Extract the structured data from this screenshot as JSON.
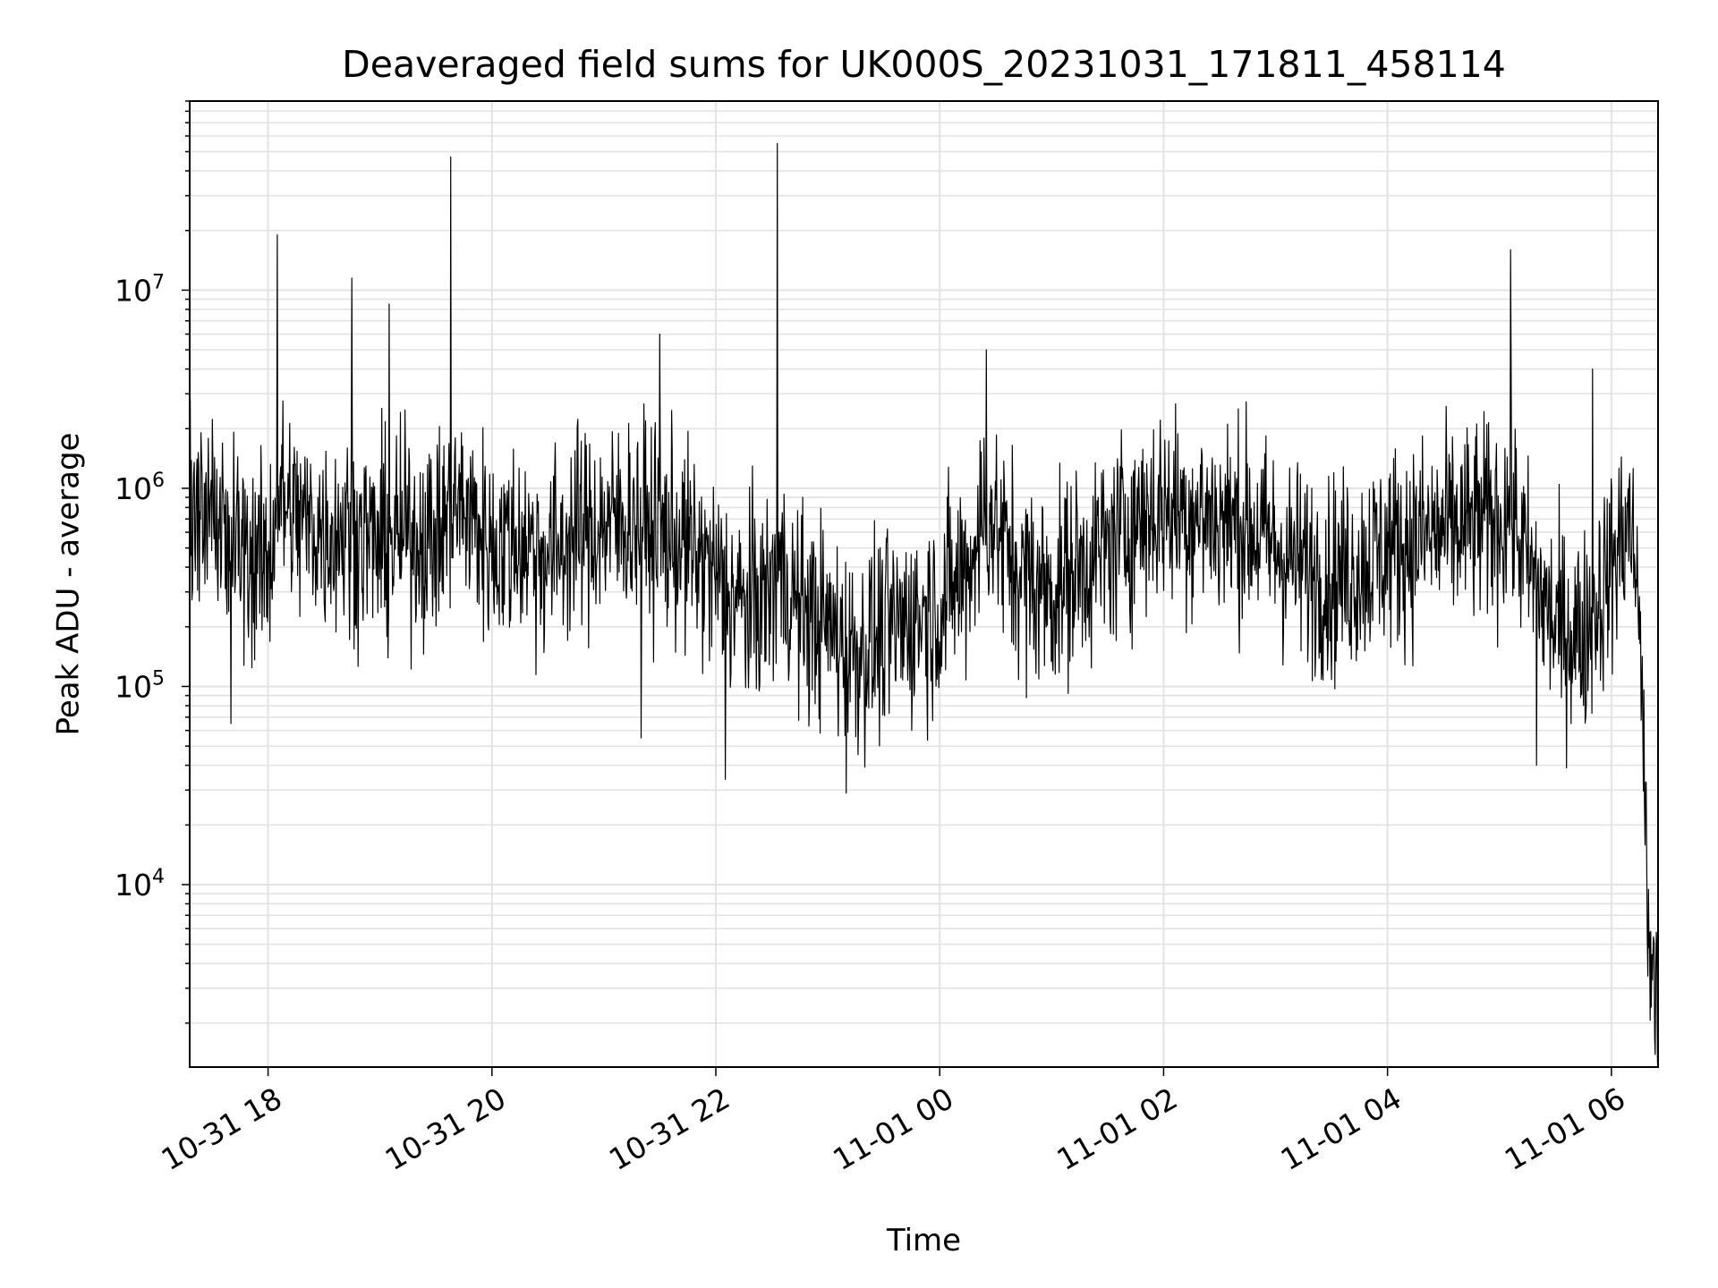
{
  "chart_data": {
    "type": "line",
    "title": "Deaveraged field sums for UK000S_20231031_171811_458114",
    "xlabel": "Time",
    "ylabel": "Peak ADU - average",
    "yscale": "log",
    "xlim": [
      "2023-10-31 17:18",
      "2023-11-01 06:25"
    ],
    "ylim": [
      1200,
      90000000
    ],
    "grid": true,
    "grid_major_x": true,
    "grid_major_minor_y": true,
    "line_color": "#000000",
    "grid_color": "#e3e3e3",
    "x_tick_labels": [
      {
        "x": "2023-10-31 18:00",
        "label": "10-31 18"
      },
      {
        "x": "2023-10-31 20:00",
        "label": "10-31 20"
      },
      {
        "x": "2023-10-31 22:00",
        "label": "10-31 22"
      },
      {
        "x": "2023-11-01 00:00",
        "label": "11-01 00"
      },
      {
        "x": "2023-11-01 02:00",
        "label": "11-01 02"
      },
      {
        "x": "2023-11-01 04:00",
        "label": "11-01 04"
      },
      {
        "x": "2023-11-01 06:00",
        "label": "11-01 06"
      }
    ],
    "y_tick_labels": [
      {
        "y": 10000,
        "base": "10",
        "exp": "4"
      },
      {
        "y": 100000,
        "base": "10",
        "exp": "5"
      },
      {
        "y": 1000000,
        "base": "10",
        "exp": "6"
      },
      {
        "y": 10000000,
        "base": "10",
        "exp": "7"
      }
    ],
    "series": [
      {
        "x": [
          "2023-10-31 17:18",
          "2023-10-31 17:30",
          "2023-10-31 17:45",
          "2023-10-31 18:00",
          "2023-10-31 18:05",
          "2023-10-31 18:15",
          "2023-10-31 18:30",
          "2023-10-31 18:45",
          "2023-10-31 19:00",
          "2023-10-31 19:15",
          "2023-10-31 19:30",
          "2023-10-31 19:38",
          "2023-10-31 19:45",
          "2023-10-31 20:00",
          "2023-10-31 20:15",
          "2023-10-31 20:30",
          "2023-10-31 20:45",
          "2023-10-31 21:00",
          "2023-10-31 21:15",
          "2023-10-31 21:30",
          "2023-10-31 21:45",
          "2023-10-31 22:00",
          "2023-10-31 22:15",
          "2023-10-31 22:30",
          "2023-10-31 22:33",
          "2023-10-31 22:45",
          "2023-10-31 23:00",
          "2023-10-31 23:15",
          "2023-10-31 23:30",
          "2023-10-31 23:45",
          "2023-11-01 00:00",
          "2023-11-01 00:15",
          "2023-11-01 00:25",
          "2023-11-01 00:35",
          "2023-11-01 00:45",
          "2023-11-01 01:00",
          "2023-11-01 01:15",
          "2023-11-01 01:30",
          "2023-11-01 01:45",
          "2023-11-01 02:00",
          "2023-11-01 02:15",
          "2023-11-01 02:30",
          "2023-11-01 02:45",
          "2023-11-01 03:00",
          "2023-11-01 03:15",
          "2023-11-01 03:30",
          "2023-11-01 03:45",
          "2023-11-01 04:00",
          "2023-11-01 04:15",
          "2023-11-01 04:30",
          "2023-11-01 04:45",
          "2023-11-01 05:00",
          "2023-11-01 05:06",
          "2023-11-01 05:15",
          "2023-11-01 05:30",
          "2023-11-01 05:45",
          "2023-11-01 06:00",
          "2023-11-01 06:10",
          "2023-11-01 06:15",
          "2023-11-01 06:20",
          "2023-11-01 06:25"
        ],
        "y": [
          700000,
          800000,
          500000,
          400000,
          900000,
          700000,
          600000,
          650000,
          500000,
          600000,
          550000,
          750000,
          800000,
          500000,
          550000,
          450000,
          600000,
          650000,
          700000,
          600000,
          500000,
          350000,
          250000,
          300000,
          400000,
          250000,
          200000,
          150000,
          180000,
          220000,
          250000,
          400000,
          800000,
          500000,
          350000,
          300000,
          400000,
          500000,
          700000,
          800000,
          750000,
          700000,
          650000,
          500000,
          400000,
          350000,
          400000,
          500000,
          550000,
          600000,
          650000,
          700000,
          800000,
          400000,
          200000,
          180000,
          400000,
          700000,
          300000,
          5000,
          2000
        ]
      }
    ],
    "spikes": [
      {
        "x": "2023-10-31 18:05",
        "y": 19000000
      },
      {
        "x": "2023-10-31 18:45",
        "y": 11500000
      },
      {
        "x": "2023-10-31 19:05",
        "y": 8500000
      },
      {
        "x": "2023-10-31 19:38",
        "y": 47000000
      },
      {
        "x": "2023-10-31 21:30",
        "y": 6000000
      },
      {
        "x": "2023-10-31 22:33",
        "y": 55000000
      },
      {
        "x": "2023-11-01 00:25",
        "y": 5000000
      },
      {
        "x": "2023-11-01 05:06",
        "y": 16000000
      },
      {
        "x": "2023-11-01 05:50",
        "y": 4000000
      }
    ],
    "dips": [
      {
        "x": "2023-10-31 17:40",
        "y": 65000
      },
      {
        "x": "2023-10-31 21:20",
        "y": 55000
      },
      {
        "x": "2023-10-31 22:05",
        "y": 34000
      },
      {
        "x": "2023-10-31 23:10",
        "y": 29000
      },
      {
        "x": "2023-11-01 05:20",
        "y": 40000
      },
      {
        "x": "2023-11-01 06:25",
        "y": 1900
      }
    ]
  }
}
